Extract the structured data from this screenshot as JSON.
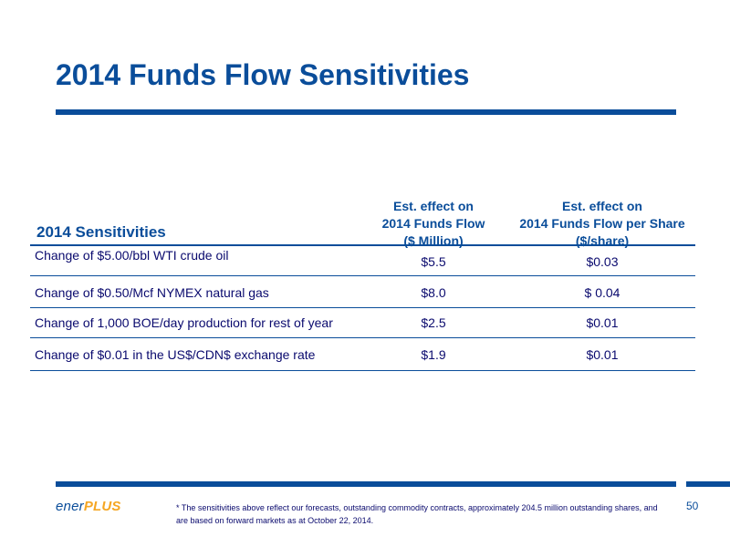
{
  "slide": {
    "title": "2014 Funds Flow Sensitivities",
    "page_number": "50"
  },
  "table": {
    "section_label": "2014 Sensitivities",
    "col1_header": [
      "Est. effect on",
      "2014 Funds Flow",
      "($ Million)"
    ],
    "col2_header": [
      "Est. effect on",
      "2014 Funds Flow per Share",
      "($/share)"
    ],
    "rows": [
      {
        "label": "Change of $5.00/bbl WTI crude oil",
        "funds_flow": "$5.5",
        "per_share": "$0.03"
      },
      {
        "label": "Change of $0.50/Mcf NYMEX natural gas",
        "funds_flow": "$8.0",
        "per_share": "$ 0.04"
      },
      {
        "label": "Change of 1,000 BOE/day production for rest of year",
        "funds_flow": "$2.5",
        "per_share": "$0.01"
      },
      {
        "label": "Change of $0.01 in the US$/CDN$ exchange rate",
        "funds_flow": "$1.9",
        "per_share": "$0.01"
      }
    ]
  },
  "footer": {
    "logo_ener": "ener",
    "logo_plus": "PLUS",
    "footnote": "* The sensitivities above reflect our forecasts, outstanding commodity contracts, approximately 204.5 million outstanding shares, and are based on forward markets as at  October 22, 2014."
  },
  "colors": {
    "brand_blue": "#0a4d9a",
    "text_navy": "#0a0a6e",
    "logo_orange": "#f5a623"
  }
}
